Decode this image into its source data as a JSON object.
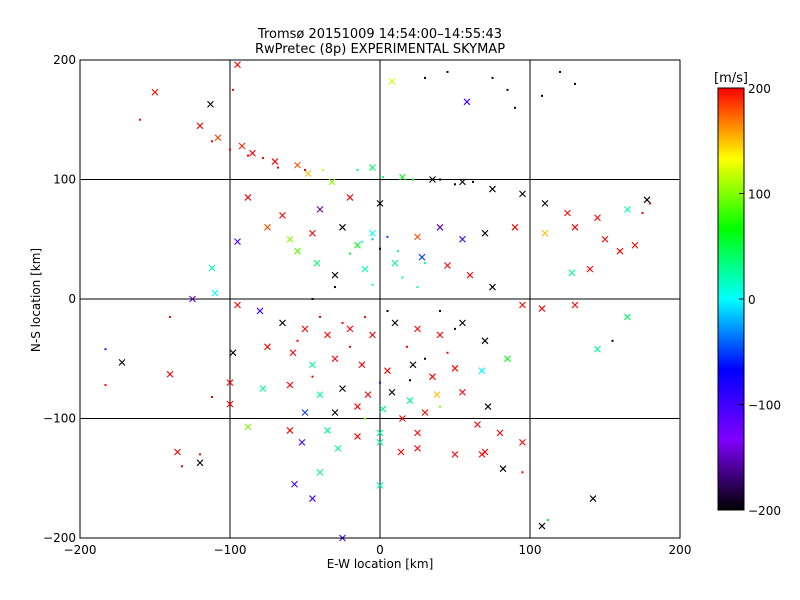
{
  "chart_data": {
    "type": "scatter",
    "title": "Tromsø 20151009 14:54:00–14:55:43",
    "subtitle": "RwPretec (8p) EXPERIMENTAL SKYMAP",
    "xlabel": "E-W location [km]",
    "ylabel": "N-S location [km]",
    "xlim": [
      -200,
      200
    ],
    "ylim": [
      -200,
      200
    ],
    "x_ticks": [
      "−200",
      "−100",
      "0",
      "100",
      "200"
    ],
    "y_ticks": [
      "−200",
      "−100",
      "0",
      "100",
      "200"
    ],
    "x_tick_values": [
      -200,
      -100,
      0,
      100,
      200
    ],
    "y_tick_values": [
      -200,
      -100,
      0,
      100,
      200
    ],
    "grid": true,
    "marker_types": [
      "x",
      "dot"
    ],
    "colorbar": {
      "label": "[m/s]",
      "range": [
        -200,
        200
      ],
      "ticks": [
        "200",
        "100",
        "0",
        "−100",
        "−200"
      ],
      "tick_values": [
        200,
        100,
        0,
        -100,
        -200
      ],
      "colormap": [
        "#000000",
        "#8000ff",
        "#0000ff",
        "#00ffff",
        "#00ff00",
        "#ffff00",
        "#ff0000"
      ]
    },
    "points": [
      {
        "x": -150,
        "y": 173,
        "v": 200,
        "m": "x"
      },
      {
        "x": -113,
        "y": 163,
        "v": -200,
        "m": "x"
      },
      {
        "x": -95,
        "y": 196,
        "v": 200,
        "m": "x"
      },
      {
        "x": -120,
        "y": 145,
        "v": 200,
        "m": "x"
      },
      {
        "x": -108,
        "y": 135,
        "v": 180,
        "m": "x"
      },
      {
        "x": -92,
        "y": 128,
        "v": 190,
        "m": "x"
      },
      {
        "x": -85,
        "y": 122,
        "v": 200,
        "m": "x"
      },
      {
        "x": -70,
        "y": 115,
        "v": 200,
        "m": "x"
      },
      {
        "x": -55,
        "y": 112,
        "v": 180,
        "m": "x"
      },
      {
        "x": -48,
        "y": 105,
        "v": 150,
        "m": "x"
      },
      {
        "x": -32,
        "y": 98,
        "v": 100,
        "m": "x"
      },
      {
        "x": 8,
        "y": 182,
        "v": 120,
        "m": "x"
      },
      {
        "x": 58,
        "y": 165,
        "v": -100,
        "m": "x"
      },
      {
        "x": 108,
        "y": 170,
        "v": -200,
        "m": "dot"
      },
      {
        "x": 85,
        "y": 175,
        "v": -200,
        "m": "dot"
      },
      {
        "x": 75,
        "y": 185,
        "v": -200,
        "m": "dot"
      },
      {
        "x": 130,
        "y": 180,
        "v": -200,
        "m": "dot"
      },
      {
        "x": 45,
        "y": 190,
        "v": -200,
        "m": "dot"
      },
      {
        "x": 30,
        "y": 185,
        "v": -200,
        "m": "dot"
      },
      {
        "x": -5,
        "y": 110,
        "v": 40,
        "m": "x"
      },
      {
        "x": 15,
        "y": 102,
        "v": 60,
        "m": "x"
      },
      {
        "x": 35,
        "y": 100,
        "v": -200,
        "m": "x"
      },
      {
        "x": 55,
        "y": 98,
        "v": -200,
        "m": "x"
      },
      {
        "x": 75,
        "y": 92,
        "v": -200,
        "m": "x"
      },
      {
        "x": 95,
        "y": 88,
        "v": -200,
        "m": "x"
      },
      {
        "x": 110,
        "y": 80,
        "v": -200,
        "m": "x"
      },
      {
        "x": 125,
        "y": 72,
        "v": 200,
        "m": "x"
      },
      {
        "x": 145,
        "y": 68,
        "v": 200,
        "m": "x"
      },
      {
        "x": 165,
        "y": 75,
        "v": 20,
        "m": "x"
      },
      {
        "x": 178,
        "y": 83,
        "v": -200,
        "m": "x"
      },
      {
        "x": 130,
        "y": 60,
        "v": 200,
        "m": "x"
      },
      {
        "x": 150,
        "y": 50,
        "v": 200,
        "m": "x"
      },
      {
        "x": 170,
        "y": 45,
        "v": 200,
        "m": "x"
      },
      {
        "x": 160,
        "y": 40,
        "v": 200,
        "m": "x"
      },
      {
        "x": 140,
        "y": 25,
        "v": 200,
        "m": "x"
      },
      {
        "x": 128,
        "y": 22,
        "v": 30,
        "m": "x"
      },
      {
        "x": 110,
        "y": 55,
        "v": 150,
        "m": "x"
      },
      {
        "x": 90,
        "y": 60,
        "v": 200,
        "m": "x"
      },
      {
        "x": 70,
        "y": 55,
        "v": -200,
        "m": "x"
      },
      {
        "x": 55,
        "y": 50,
        "v": -100,
        "m": "x"
      },
      {
        "x": 40,
        "y": 60,
        "v": -150,
        "m": "x"
      },
      {
        "x": 25,
        "y": 52,
        "v": 180,
        "m": "x"
      },
      {
        "x": -5,
        "y": 55,
        "v": 0,
        "m": "x"
      },
      {
        "x": -15,
        "y": 45,
        "v": 60,
        "m": "x"
      },
      {
        "x": -25,
        "y": 60,
        "v": -200,
        "m": "x"
      },
      {
        "x": -45,
        "y": 55,
        "v": 200,
        "m": "x"
      },
      {
        "x": -60,
        "y": 50,
        "v": 100,
        "m": "x"
      },
      {
        "x": -75,
        "y": 60,
        "v": 180,
        "m": "x"
      },
      {
        "x": -95,
        "y": 48,
        "v": -100,
        "m": "x"
      },
      {
        "x": -112,
        "y": 26,
        "v": 20,
        "m": "x"
      },
      {
        "x": -88,
        "y": 85,
        "v": 200,
        "m": "x"
      },
      {
        "x": -65,
        "y": 70,
        "v": 200,
        "m": "x"
      },
      {
        "x": -40,
        "y": 75,
        "v": -150,
        "m": "x"
      },
      {
        "x": -20,
        "y": 85,
        "v": 200,
        "m": "x"
      },
      {
        "x": 0,
        "y": 80,
        "v": -200,
        "m": "x"
      },
      {
        "x": -55,
        "y": 40,
        "v": 90,
        "m": "x"
      },
      {
        "x": -42,
        "y": 30,
        "v": 40,
        "m": "x"
      },
      {
        "x": -30,
        "y": 20,
        "v": -200,
        "m": "x"
      },
      {
        "x": -10,
        "y": 25,
        "v": 20,
        "m": "x"
      },
      {
        "x": 10,
        "y": 30,
        "v": 30,
        "m": "x"
      },
      {
        "x": 28,
        "y": 35,
        "v": -50,
        "m": "x"
      },
      {
        "x": 45,
        "y": 28,
        "v": 200,
        "m": "x"
      },
      {
        "x": 60,
        "y": 20,
        "v": 200,
        "m": "x"
      },
      {
        "x": 75,
        "y": 10,
        "v": -200,
        "m": "x"
      },
      {
        "x": 95,
        "y": -5,
        "v": 200,
        "m": "x"
      },
      {
        "x": 108,
        "y": -8,
        "v": 200,
        "m": "x"
      },
      {
        "x": 130,
        "y": -5,
        "v": 200,
        "m": "x"
      },
      {
        "x": 145,
        "y": -42,
        "v": 30,
        "m": "x"
      },
      {
        "x": 165,
        "y": -15,
        "v": 40,
        "m": "x"
      },
      {
        "x": -125,
        "y": 0,
        "v": -150,
        "m": "x"
      },
      {
        "x": -110,
        "y": 5,
        "v": 0,
        "m": "x"
      },
      {
        "x": -95,
        "y": -5,
        "v": 200,
        "m": "x"
      },
      {
        "x": -80,
        "y": -10,
        "v": -100,
        "m": "x"
      },
      {
        "x": -65,
        "y": -20,
        "v": -200,
        "m": "x"
      },
      {
        "x": -50,
        "y": -25,
        "v": 200,
        "m": "x"
      },
      {
        "x": -35,
        "y": -30,
        "v": 200,
        "m": "x"
      },
      {
        "x": -20,
        "y": -25,
        "v": 200,
        "m": "x"
      },
      {
        "x": -5,
        "y": -30,
        "v": 200,
        "m": "x"
      },
      {
        "x": 10,
        "y": -20,
        "v": -200,
        "m": "x"
      },
      {
        "x": 25,
        "y": -25,
        "v": 200,
        "m": "x"
      },
      {
        "x": 40,
        "y": -30,
        "v": 200,
        "m": "x"
      },
      {
        "x": 55,
        "y": -20,
        "v": -200,
        "m": "x"
      },
      {
        "x": 70,
        "y": -35,
        "v": -200,
        "m": "x"
      },
      {
        "x": -98,
        "y": -45,
        "v": -200,
        "m": "x"
      },
      {
        "x": -75,
        "y": -40,
        "v": 200,
        "m": "x"
      },
      {
        "x": -58,
        "y": -45,
        "v": 200,
        "m": "x"
      },
      {
        "x": -45,
        "y": -55,
        "v": 30,
        "m": "x"
      },
      {
        "x": -30,
        "y": -50,
        "v": 200,
        "m": "x"
      },
      {
        "x": -12,
        "y": -55,
        "v": 200,
        "m": "x"
      },
      {
        "x": 5,
        "y": -60,
        "v": 200,
        "m": "x"
      },
      {
        "x": 22,
        "y": -55,
        "v": -200,
        "m": "x"
      },
      {
        "x": 35,
        "y": -65,
        "v": 200,
        "m": "x"
      },
      {
        "x": 50,
        "y": -58,
        "v": 200,
        "m": "x"
      },
      {
        "x": 68,
        "y": -60,
        "v": 0,
        "m": "x"
      },
      {
        "x": 85,
        "y": -50,
        "v": 60,
        "m": "x"
      },
      {
        "x": -172,
        "y": -53,
        "v": -200,
        "m": "x"
      },
      {
        "x": -140,
        "y": -63,
        "v": 200,
        "m": "x"
      },
      {
        "x": -100,
        "y": -70,
        "v": 200,
        "m": "x"
      },
      {
        "x": -78,
        "y": -75,
        "v": 30,
        "m": "x"
      },
      {
        "x": -60,
        "y": -72,
        "v": 200,
        "m": "x"
      },
      {
        "x": -40,
        "y": -80,
        "v": 30,
        "m": "x"
      },
      {
        "x": -25,
        "y": -75,
        "v": -200,
        "m": "x"
      },
      {
        "x": -8,
        "y": -80,
        "v": 200,
        "m": "x"
      },
      {
        "x": 8,
        "y": -78,
        "v": -200,
        "m": "x"
      },
      {
        "x": 20,
        "y": -85,
        "v": 30,
        "m": "x"
      },
      {
        "x": 38,
        "y": -80,
        "v": 150,
        "m": "x"
      },
      {
        "x": 55,
        "y": -78,
        "v": 200,
        "m": "x"
      },
      {
        "x": 72,
        "y": -90,
        "v": -200,
        "m": "x"
      },
      {
        "x": -100,
        "y": -88,
        "v": 200,
        "m": "x"
      },
      {
        "x": -50,
        "y": -95,
        "v": -50,
        "m": "x"
      },
      {
        "x": -30,
        "y": -95,
        "v": -200,
        "m": "x"
      },
      {
        "x": -15,
        "y": -90,
        "v": 200,
        "m": "x"
      },
      {
        "x": 2,
        "y": -92,
        "v": 30,
        "m": "x"
      },
      {
        "x": 15,
        "y": -100,
        "v": 200,
        "m": "x"
      },
      {
        "x": 30,
        "y": -95,
        "v": 200,
        "m": "x"
      },
      {
        "x": -88,
        "y": -107,
        "v": 100,
        "m": "x"
      },
      {
        "x": -60,
        "y": -110,
        "v": 200,
        "m": "x"
      },
      {
        "x": -35,
        "y": -110,
        "v": 30,
        "m": "x"
      },
      {
        "x": -15,
        "y": -115,
        "v": 200,
        "m": "x"
      },
      {
        "x": 0,
        "y": -112,
        "v": 30,
        "m": "x"
      },
      {
        "x": 25,
        "y": -112,
        "v": 200,
        "m": "x"
      },
      {
        "x": 65,
        "y": -105,
        "v": 200,
        "m": "x"
      },
      {
        "x": 80,
        "y": -112,
        "v": 200,
        "m": "x"
      },
      {
        "x": -52,
        "y": -120,
        "v": -100,
        "m": "x"
      },
      {
        "x": -28,
        "y": -125,
        "v": 30,
        "m": "x"
      },
      {
        "x": 0,
        "y": -120,
        "v": 30,
        "m": "x"
      },
      {
        "x": 25,
        "y": -125,
        "v": 200,
        "m": "x"
      },
      {
        "x": 50,
        "y": -130,
        "v": 200,
        "m": "x"
      },
      {
        "x": 70,
        "y": -128,
        "v": 200,
        "m": "x"
      },
      {
        "x": 95,
        "y": -120,
        "v": 200,
        "m": "x"
      },
      {
        "x": -135,
        "y": -128,
        "v": 200,
        "m": "x"
      },
      {
        "x": -120,
        "y": -137,
        "v": -200,
        "m": "x"
      },
      {
        "x": -40,
        "y": -145,
        "v": 30,
        "m": "x"
      },
      {
        "x": 14,
        "y": -128,
        "v": 200,
        "m": "x"
      },
      {
        "x": 68,
        "y": -130,
        "v": 200,
        "m": "x"
      },
      {
        "x": 82,
        "y": -142,
        "v": -200,
        "m": "x"
      },
      {
        "x": -57,
        "y": -155,
        "v": -100,
        "m": "x"
      },
      {
        "x": -45,
        "y": -167,
        "v": -100,
        "m": "x"
      },
      {
        "x": 0,
        "y": -156,
        "v": 20,
        "m": "x"
      },
      {
        "x": 142,
        "y": -167,
        "v": -200,
        "m": "x"
      },
      {
        "x": 108,
        "y": -190,
        "v": -200,
        "m": "x"
      },
      {
        "x": -25,
        "y": -200,
        "v": -100,
        "m": "x"
      },
      {
        "x": 112,
        "y": -185,
        "v": 60,
        "m": "dot"
      },
      {
        "x": -112,
        "y": 132,
        "v": 200,
        "m": "dot"
      },
      {
        "x": -100,
        "y": 125,
        "v": 200,
        "m": "dot"
      },
      {
        "x": -88,
        "y": 120,
        "v": 200,
        "m": "dot"
      },
      {
        "x": -78,
        "y": 118,
        "v": 200,
        "m": "dot"
      },
      {
        "x": -68,
        "y": 110,
        "v": 200,
        "m": "dot"
      },
      {
        "x": -50,
        "y": 108,
        "v": 200,
        "m": "dot"
      },
      {
        "x": -38,
        "y": 108,
        "v": 120,
        "m": "dot"
      },
      {
        "x": -15,
        "y": 108,
        "v": 30,
        "m": "dot"
      },
      {
        "x": 2,
        "y": 102,
        "v": 40,
        "m": "dot"
      },
      {
        "x": 22,
        "y": 100,
        "v": 60,
        "m": "dot"
      },
      {
        "x": 40,
        "y": 100,
        "v": -200,
        "m": "dot"
      },
      {
        "x": 50,
        "y": 96,
        "v": -200,
        "m": "dot"
      },
      {
        "x": 62,
        "y": 98,
        "v": -200,
        "m": "dot"
      },
      {
        "x": -5,
        "y": 50,
        "v": -20,
        "m": "dot"
      },
      {
        "x": 5,
        "y": 52,
        "v": -50,
        "m": "dot"
      },
      {
        "x": -12,
        "y": 48,
        "v": 0,
        "m": "dot"
      },
      {
        "x": 0,
        "y": 42,
        "v": -200,
        "m": "dot"
      },
      {
        "x": -20,
        "y": 38,
        "v": 50,
        "m": "dot"
      },
      {
        "x": 12,
        "y": 40,
        "v": 20,
        "m": "dot"
      },
      {
        "x": 30,
        "y": 30,
        "v": 20,
        "m": "dot"
      },
      {
        "x": 15,
        "y": 18,
        "v": 30,
        "m": "dot"
      },
      {
        "x": 25,
        "y": 10,
        "v": 20,
        "m": "dot"
      },
      {
        "x": -5,
        "y": 12,
        "v": 20,
        "m": "dot"
      },
      {
        "x": -30,
        "y": 10,
        "v": -200,
        "m": "dot"
      },
      {
        "x": -45,
        "y": 0,
        "v": -200,
        "m": "dot"
      },
      {
        "x": 40,
        "y": -10,
        "v": -200,
        "m": "dot"
      },
      {
        "x": 50,
        "y": -25,
        "v": -200,
        "m": "dot"
      },
      {
        "x": -40,
        "y": -15,
        "v": 200,
        "m": "dot"
      },
      {
        "x": -25,
        "y": -20,
        "v": 200,
        "m": "dot"
      },
      {
        "x": -10,
        "y": -15,
        "v": 200,
        "m": "dot"
      },
      {
        "x": 5,
        "y": -10,
        "v": -200,
        "m": "dot"
      },
      {
        "x": 18,
        "y": -40,
        "v": 200,
        "m": "dot"
      },
      {
        "x": -20,
        "y": -40,
        "v": 200,
        "m": "dot"
      },
      {
        "x": 30,
        "y": -50,
        "v": -200,
        "m": "dot"
      },
      {
        "x": 45,
        "y": -45,
        "v": 200,
        "m": "dot"
      },
      {
        "x": -55,
        "y": -35,
        "v": 200,
        "m": "dot"
      },
      {
        "x": -45,
        "y": -65,
        "v": 200,
        "m": "dot"
      },
      {
        "x": 0,
        "y": -70,
        "v": -100,
        "m": "dot"
      },
      {
        "x": 20,
        "y": -68,
        "v": -200,
        "m": "dot"
      },
      {
        "x": 40,
        "y": -90,
        "v": 100,
        "m": "dot"
      },
      {
        "x": -10,
        "y": -100,
        "v": 100,
        "m": "dot"
      },
      {
        "x": -183,
        "y": -42,
        "v": -100,
        "m": "dot"
      },
      {
        "x": -183,
        "y": -72,
        "v": 200,
        "m": "dot"
      },
      {
        "x": -140,
        "y": -15,
        "v": 200,
        "m": "dot"
      },
      {
        "x": -120,
        "y": -130,
        "v": 200,
        "m": "dot"
      },
      {
        "x": -132,
        "y": -140,
        "v": 200,
        "m": "dot"
      },
      {
        "x": -112,
        "y": -82,
        "v": 200,
        "m": "dot"
      },
      {
        "x": -160,
        "y": 150,
        "v": 200,
        "m": "dot"
      },
      {
        "x": -98,
        "y": 175,
        "v": 200,
        "m": "dot"
      },
      {
        "x": 120,
        "y": 190,
        "v": -200,
        "m": "dot"
      },
      {
        "x": 90,
        "y": 160,
        "v": -200,
        "m": "dot"
      },
      {
        "x": 175,
        "y": 72,
        "v": 200,
        "m": "dot"
      },
      {
        "x": 180,
        "y": 80,
        "v": 200,
        "m": "dot"
      },
      {
        "x": 155,
        "y": -35,
        "v": -200,
        "m": "dot"
      },
      {
        "x": 95,
        "y": -145,
        "v": 200,
        "m": "dot"
      }
    ]
  }
}
